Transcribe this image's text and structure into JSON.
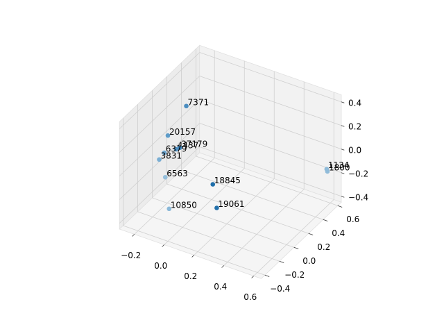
{
  "chart_data": {
    "type": "scatter3d",
    "point_labels": [
      "7371",
      "20157",
      "4437",
      "37179",
      "6379",
      "3831",
      "6563",
      "18845",
      "10850",
      "19061",
      "1134",
      "1800"
    ],
    "x": [
      -0.15,
      -0.21,
      -0.16,
      -0.15,
      -0.2,
      -0.19,
      -0.13,
      0.14,
      -0.07,
      0.22,
      0.62,
      0.63
    ],
    "y": [
      0.16,
      0.03,
      0.04,
      0.07,
      -0.04,
      -0.13,
      -0.17,
      -0.07,
      -0.24,
      -0.18,
      0.51,
      0.5
    ],
    "z": [
      0.3,
      0.1,
      0,
      0,
      0,
      0,
      -0.1,
      -0.1,
      -0.3,
      -0.2,
      -0.1,
      -0.11
    ],
    "colors": [
      "#4a8dc0",
      "#5d9bc8",
      "#4f90c2",
      "#3f86bd",
      "#6aa3cd",
      "#7aaed3",
      "#95bfdc",
      "#1f6eaa",
      "#8ab8d8",
      "#2270ab",
      "#8fbbd9",
      "#8fbbd9"
    ],
    "xlim": [
      -0.3,
      0.65
    ],
    "ylim": [
      -0.45,
      0.65
    ],
    "zlim": [
      -0.45,
      0.46
    ],
    "xticks": [
      {
        "value": -0.2,
        "label": "−0.2"
      },
      {
        "value": 0,
        "label": "0.0"
      },
      0.2,
      0.4,
      0.6
    ],
    "yticks": [
      {
        "value": -0.4,
        "label": "−0.4"
      },
      {
        "value": -0.2,
        "label": "−0.2"
      },
      {
        "value": 0,
        "label": "0.0"
      },
      0.2,
      0.4,
      0.6
    ],
    "zticks": [
      {
        "value": -0.4,
        "label": "−0.4"
      },
      {
        "value": -0.2,
        "label": "−0.2"
      },
      {
        "value": 0,
        "label": "0.0"
      },
      0.2,
      0.4
    ],
    "grid": true
  }
}
